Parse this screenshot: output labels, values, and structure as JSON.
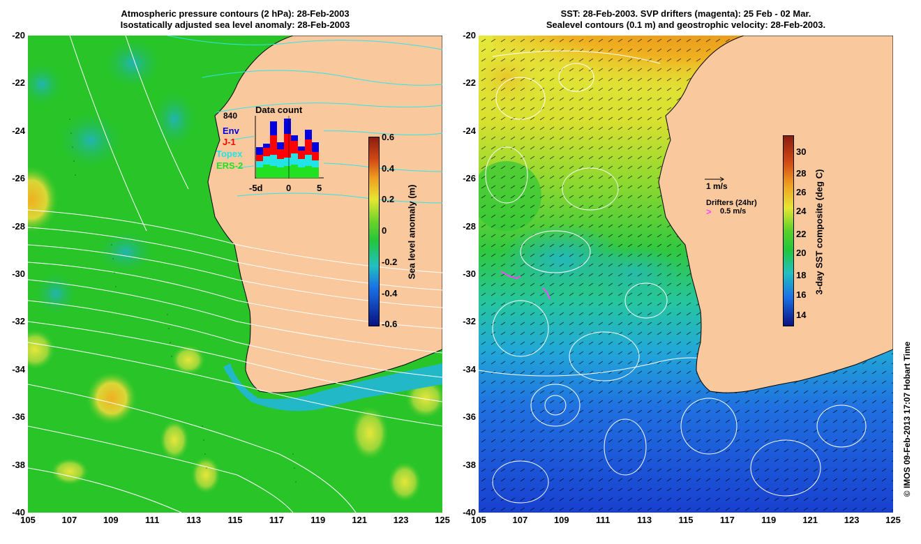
{
  "left_panel": {
    "title_line1": "Atmospheric pressure contours (2 hPa): 28-Feb-2003",
    "title_line2": "Isostatically adjusted sea level anomaly: 28-Feb-2003",
    "colorbar_label": "Sea level anomaly (m)",
    "colorbar_ticks": [
      "0.6",
      "0.4",
      "0.2",
      "0",
      "-0.2",
      "-0.4",
      "-0.6"
    ],
    "data_count": {
      "title": "Data count",
      "max_label": "840",
      "legend": [
        {
          "label": "Env",
          "color": "#0000e0"
        },
        {
          "label": "J-1",
          "color": "#ff0000"
        },
        {
          "label": "Topex",
          "color": "#22e4e4"
        },
        {
          "label": "ERS-2",
          "color": "#22e022"
        }
      ],
      "x_ticks": [
        "-5d",
        "0",
        "5"
      ]
    }
  },
  "right_panel": {
    "title_line1": "SST: 28-Feb-2003. SVP drifters (magenta): 25 Feb - 02 Mar.",
    "title_line2": "Sealevel contours (0.1 m) and geostrophic velocity: 28-Feb-2003.",
    "colorbar_label": "3-day SST composite (deg C)",
    "colorbar_ticks": [
      "30",
      "28",
      "26",
      "24",
      "22",
      "20",
      "18",
      "16",
      "14"
    ],
    "velocity_scale": "1 m/s",
    "drifters_label": "Drifters (24hr)",
    "drifter_scale": "0.5 m/s",
    "drifter_color": "#ff44ff"
  },
  "axes": {
    "lat_ticks": [
      "-20",
      "-22",
      "-24",
      "-26",
      "-28",
      "-30",
      "-32",
      "-34",
      "-36",
      "-38",
      "-40"
    ],
    "lon_ticks": [
      "105",
      "107",
      "109",
      "111",
      "113",
      "115",
      "117",
      "119",
      "121",
      "123",
      "125"
    ],
    "lat_range": [
      -40,
      -20
    ],
    "lon_range": [
      105,
      125
    ]
  },
  "colors": {
    "land": "#f9c89c",
    "ocean_sla": "#22c622",
    "sst_warm": "#c05a10",
    "sst_cool": "#1848d8"
  },
  "credit": "© IMOS 09-Feb-2013 17:07 Hobart Time"
}
